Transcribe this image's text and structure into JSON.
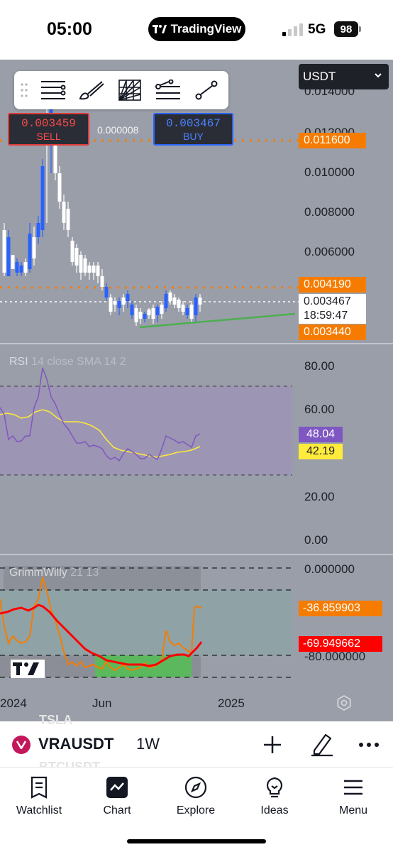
{
  "status_bar": {
    "time": "05:00",
    "app_pill": "TradingView",
    "network": "5G",
    "battery": "98"
  },
  "colors": {
    "chart_bg": "#9a9ea8",
    "up_candle": "#2962ff",
    "down_candle": "#ffffff",
    "orange": "#f57c00",
    "rsi_line": "#7e57c2",
    "sma_line": "#ffeb3b",
    "trend_line": "#4caf50",
    "gw_fast": "#f57c00",
    "gw_slow": "#ff0000",
    "gw_zone": "#4caf50"
  },
  "chart": {
    "currency_select": "USDT",
    "sell": {
      "price": "0.003459",
      "label": "SELL"
    },
    "buy": {
      "price": "0.003467",
      "label": "BUY"
    },
    "spread": "0.000008",
    "price_axis": [
      "0.014000",
      "0.012000",
      "0.010000",
      "0.008000",
      "0.006000"
    ],
    "tags": {
      "upper_level": "0.011600",
      "mid_level": "0.004190",
      "current_price": "0.003467",
      "countdown": "18:59:47",
      "lower_level": "0.003440"
    },
    "time_axis": [
      "2024",
      "Jun",
      "2025"
    ]
  },
  "rsi": {
    "title": "RSI",
    "params": "14 close SMA 14 2",
    "axis": [
      "80.00",
      "60.00",
      "20.00",
      "0.00"
    ],
    "rsi_value": "48.04",
    "sma_value": "42.19"
  },
  "grimmwilly": {
    "title": "GrimmWilly",
    "params": "21 13",
    "axis": [
      "0.000000",
      "-80.000000"
    ],
    "value_fast": "-36.859903",
    "value_slow": "-69.949662"
  },
  "symbol_bar": {
    "ghost_above": "TSLA",
    "symbol": "VRAUSDT",
    "interval": "1W",
    "ghost_below": "BTCUSDT"
  },
  "nav": {
    "items": [
      {
        "label": "Watchlist",
        "icon": "watchlist-icon"
      },
      {
        "label": "Chart",
        "icon": "chart-icon"
      },
      {
        "label": "Explore",
        "icon": "compass-icon"
      },
      {
        "label": "Ideas",
        "icon": "lightbulb-icon"
      },
      {
        "label": "Menu",
        "icon": "hamburger-icon"
      }
    ]
  }
}
